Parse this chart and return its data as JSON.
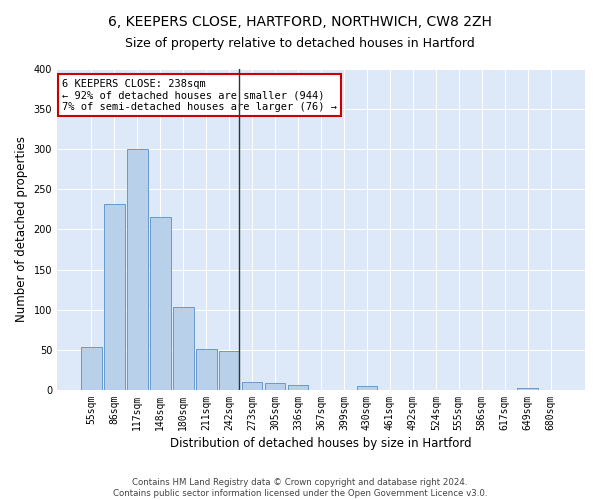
{
  "title_line1": "6, KEEPERS CLOSE, HARTFORD, NORTHWICH, CW8 2ZH",
  "title_line2": "Size of property relative to detached houses in Hartford",
  "xlabel": "Distribution of detached houses by size in Hartford",
  "ylabel": "Number of detached properties",
  "categories": [
    "55sqm",
    "86sqm",
    "117sqm",
    "148sqm",
    "180sqm",
    "211sqm",
    "242sqm",
    "273sqm",
    "305sqm",
    "336sqm",
    "367sqm",
    "399sqm",
    "430sqm",
    "461sqm",
    "492sqm",
    "524sqm",
    "555sqm",
    "586sqm",
    "617sqm",
    "649sqm",
    "680sqm"
  ],
  "values": [
    53,
    232,
    300,
    215,
    103,
    51,
    49,
    10,
    9,
    6,
    0,
    0,
    5,
    0,
    0,
    0,
    0,
    0,
    0,
    3,
    0
  ],
  "bar_color": "#b8d0ea",
  "bar_edge_color": "#6699cc",
  "highlight_bar_index": 6,
  "highlight_line_color": "#333333",
  "annotation_box_text": "6 KEEPERS CLOSE: 238sqm\n← 92% of detached houses are smaller (944)\n7% of semi-detached houses are larger (76) →",
  "annotation_box_color": "#cc0000",
  "ylim": [
    0,
    400
  ],
  "yticks": [
    0,
    50,
    100,
    150,
    200,
    250,
    300,
    350,
    400
  ],
  "background_color": "#dde8f8",
  "grid_color": "#ffffff",
  "fig_background_color": "#ffffff",
  "footer_line1": "Contains HM Land Registry data © Crown copyright and database right 2024.",
  "footer_line2": "Contains public sector information licensed under the Open Government Licence v3.0.",
  "title_fontsize": 10,
  "subtitle_fontsize": 9,
  "axis_label_fontsize": 8.5,
  "tick_fontsize": 7,
  "annotation_fontsize": 7.5
}
